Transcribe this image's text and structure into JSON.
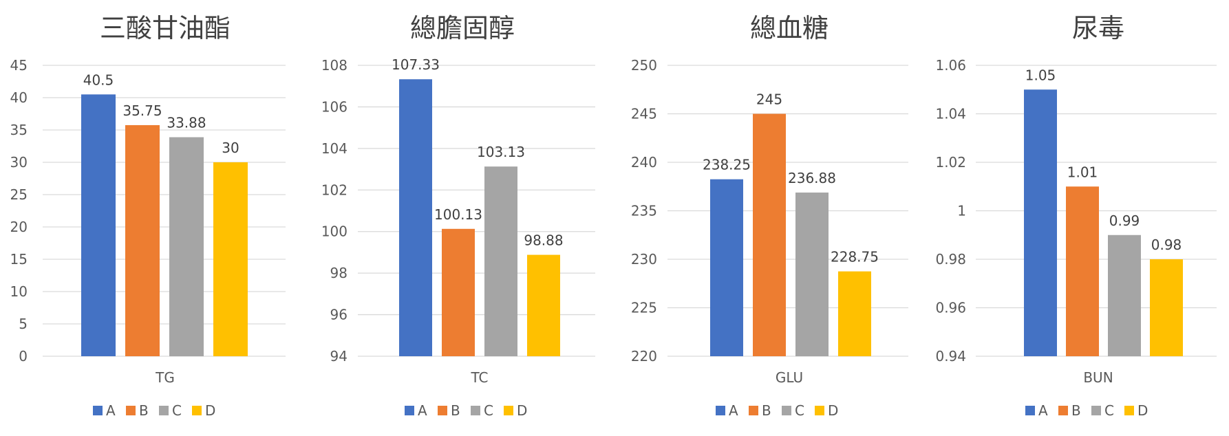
{
  "chart_data": [
    {
      "type": "bar",
      "title": "三酸甘油酯",
      "categories": [
        "TG"
      ],
      "series": [
        {
          "name": "A",
          "values": [
            40.5
          ],
          "label": "40.5"
        },
        {
          "name": "B",
          "values": [
            35.75
          ],
          "label": "35.75"
        },
        {
          "name": "C",
          "values": [
            33.88
          ],
          "label": "33.88"
        },
        {
          "name": "D",
          "values": [
            30
          ],
          "label": "30"
        }
      ],
      "ylim": [
        0,
        45
      ],
      "yticks": [
        "0",
        "5",
        "10",
        "15",
        "20",
        "25",
        "30",
        "35",
        "40",
        "45"
      ],
      "legend": "bottom",
      "grid": true
    },
    {
      "type": "bar",
      "title": "總膽固醇",
      "categories": [
        "TC"
      ],
      "series": [
        {
          "name": "A",
          "values": [
            107.33
          ],
          "label": "107.33"
        },
        {
          "name": "B",
          "values": [
            100.13
          ],
          "label": "100.13"
        },
        {
          "name": "C",
          "values": [
            103.13
          ],
          "label": "103.13"
        },
        {
          "name": "D",
          "values": [
            98.88
          ],
          "label": "98.88"
        }
      ],
      "ylim": [
        94,
        108
      ],
      "yticks": [
        "94",
        "96",
        "98",
        "100",
        "102",
        "104",
        "106",
        "108"
      ],
      "legend": "bottom",
      "grid": true
    },
    {
      "type": "bar",
      "title": "總血糖",
      "categories": [
        "GLU"
      ],
      "series": [
        {
          "name": "A",
          "values": [
            238.25
          ],
          "label": "238.25"
        },
        {
          "name": "B",
          "values": [
            245
          ],
          "label": "245"
        },
        {
          "name": "C",
          "values": [
            236.88
          ],
          "label": "236.88"
        },
        {
          "name": "D",
          "values": [
            228.75
          ],
          "label": "228.75"
        }
      ],
      "ylim": [
        220,
        250
      ],
      "yticks": [
        "220",
        "225",
        "230",
        "235",
        "240",
        "245",
        "250"
      ],
      "legend": "bottom",
      "grid": true
    },
    {
      "type": "bar",
      "title": "尿毒",
      "categories": [
        "BUN"
      ],
      "series": [
        {
          "name": "A",
          "values": [
            1.05
          ],
          "label": "1.05"
        },
        {
          "name": "B",
          "values": [
            1.01
          ],
          "label": "1.01"
        },
        {
          "name": "C",
          "values": [
            0.99
          ],
          "label": "0.99"
        },
        {
          "name": "D",
          "values": [
            0.98
          ],
          "label": "0.98"
        }
      ],
      "ylim": [
        0.94,
        1.06
      ],
      "yticks": [
        "0.94",
        "0.96",
        "0.98",
        "1",
        "1.02",
        "1.04",
        "1.06"
      ],
      "legend": "bottom",
      "grid": true
    }
  ],
  "colors": {
    "A": "#4472C4",
    "B": "#ED7D31",
    "C": "#A5A5A5",
    "D": "#FFC000"
  }
}
